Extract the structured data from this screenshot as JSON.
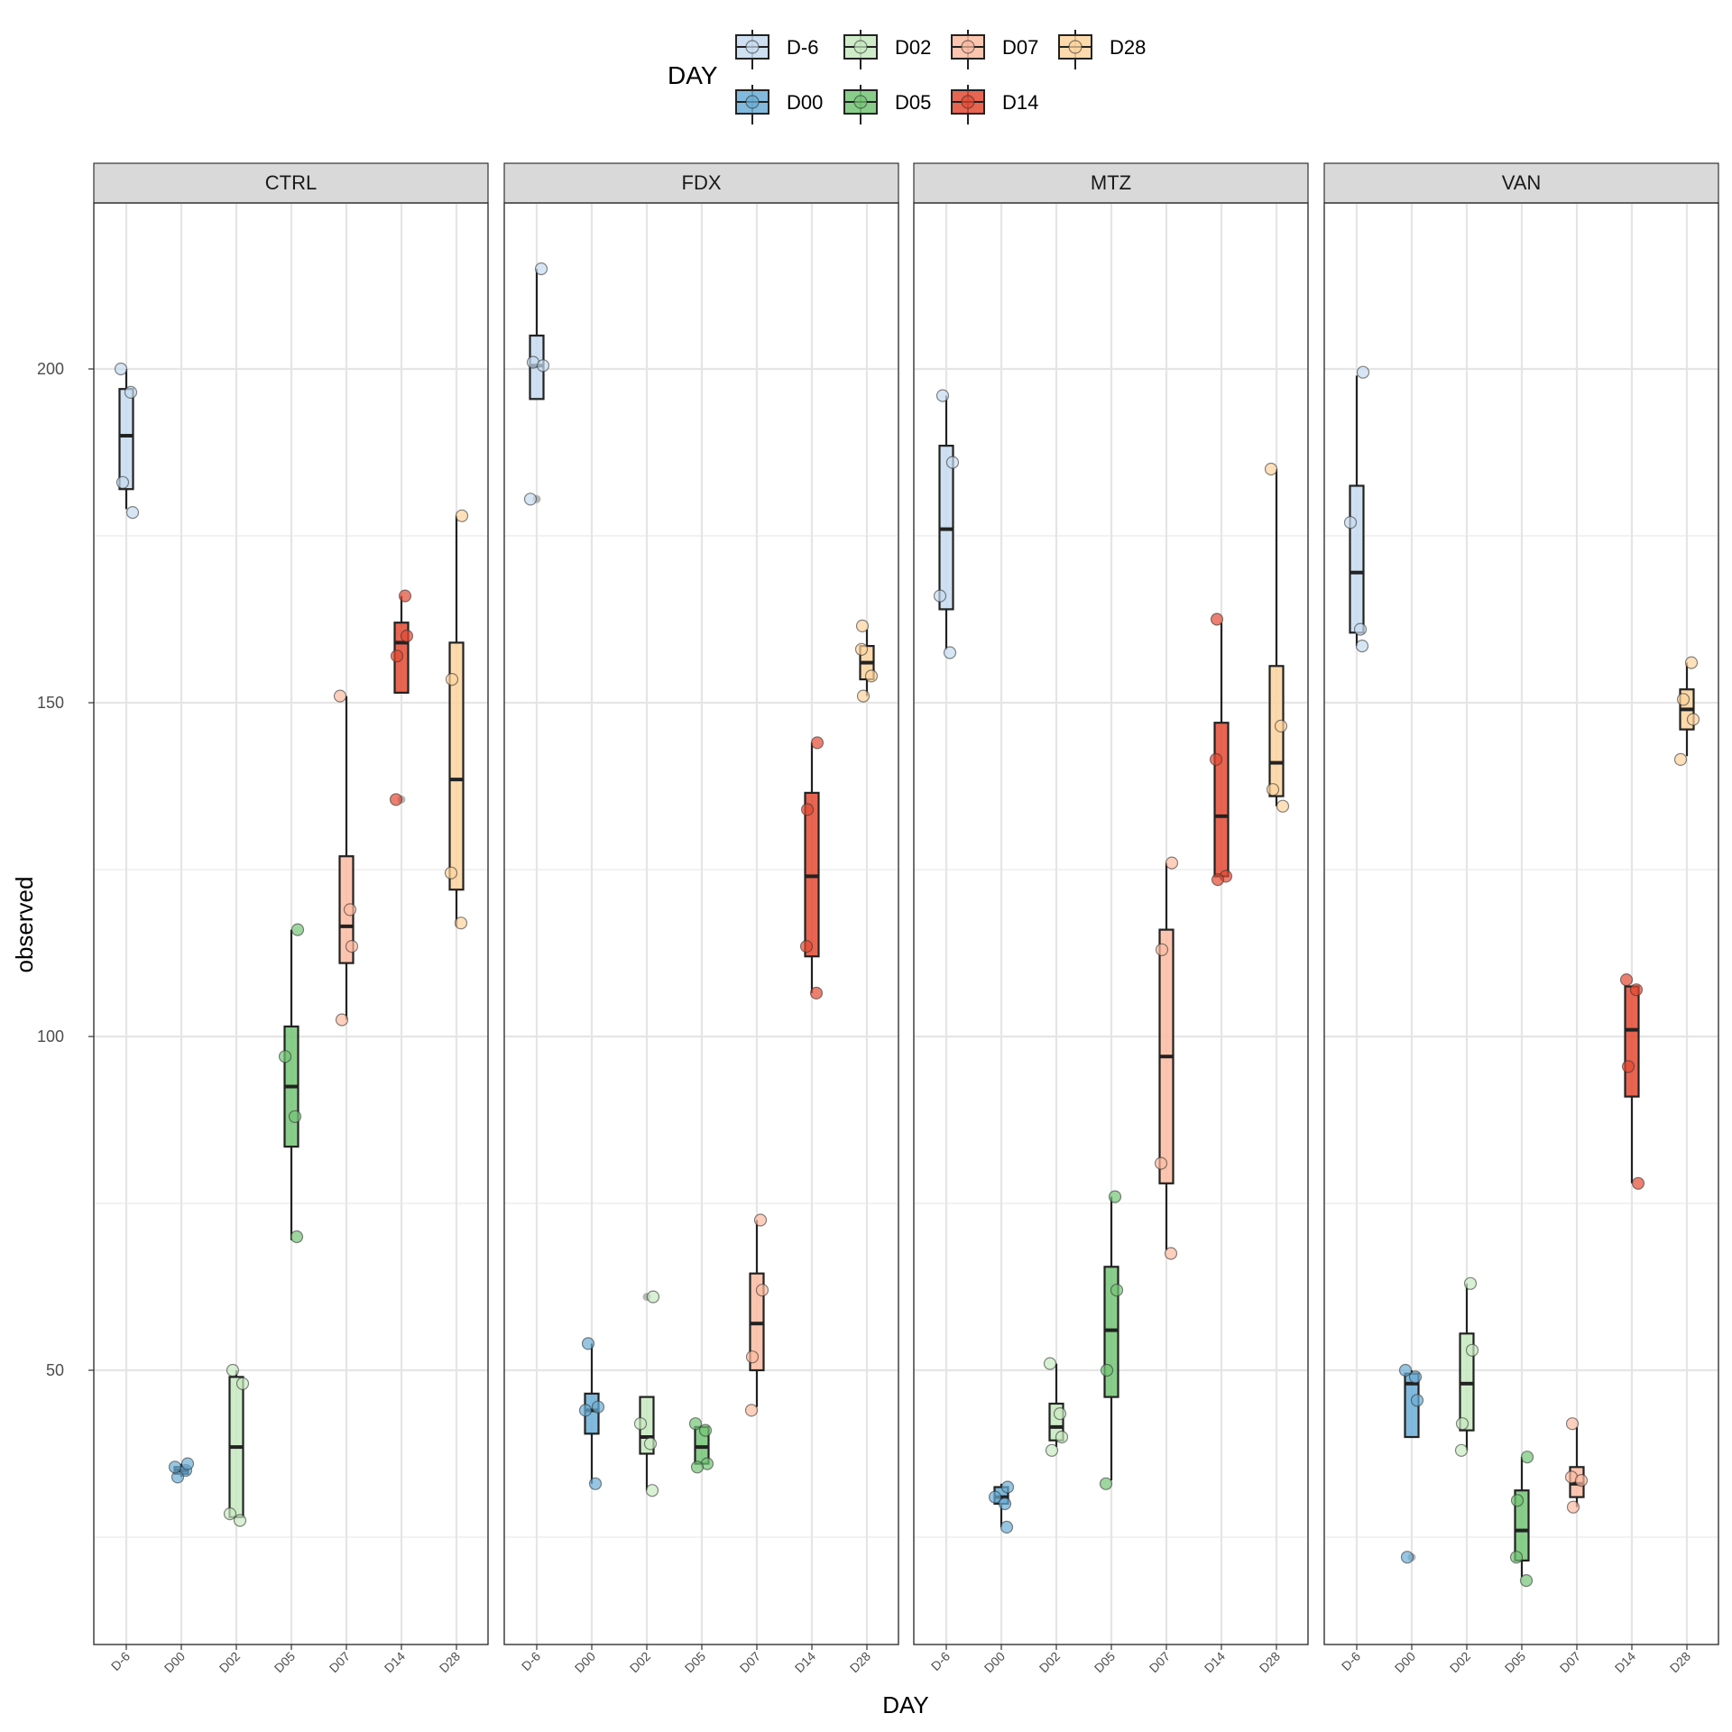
{
  "chart_data": {
    "type": "box",
    "xlabel": "DAY",
    "ylabel": "observed",
    "ylim": [
      8,
      224
    ],
    "yticks": [
      50,
      100,
      150,
      200
    ],
    "grid": true,
    "legend": {
      "title": "DAY",
      "position": "top",
      "entries": [
        "D-6",
        "D02",
        "D07",
        "D28",
        "D00",
        "D05",
        "D14"
      ]
    },
    "categories": [
      "D-6",
      "D00",
      "D02",
      "D05",
      "D07",
      "D14",
      "D28"
    ],
    "colors": {
      "D-6": "#c6dbef",
      "D00": "#6baed6",
      "D02": "#c7e9c0",
      "D05": "#74c476",
      "D07": "#fcbba1",
      "D14": "#e34a33",
      "D28": "#fdd49e"
    },
    "panels": [
      {
        "name": "CTRL",
        "boxes": [
          {
            "day": "D-6",
            "q1": 182,
            "median": 190,
            "q3": 197,
            "whisker_low": 179,
            "whisker_high": 200,
            "points": [
              200,
              196.5,
              183,
              178.5
            ]
          },
          {
            "day": "D00",
            "q1": 34.5,
            "median": 35,
            "q3": 35.5,
            "whisker_low": 34,
            "whisker_high": 36,
            "points": [
              35,
              34,
              36,
              35.5
            ]
          },
          {
            "day": "D02",
            "q1": 28,
            "median": 38.5,
            "q3": 49,
            "whisker_low": 28,
            "whisker_high": 50,
            "points": [
              50,
              48,
              28.5,
              27.5
            ]
          },
          {
            "day": "D05",
            "q1": 83.5,
            "median": 92.5,
            "q3": 101.5,
            "whisker_low": 69.5,
            "whisker_high": 116,
            "points": [
              116,
              97,
              88,
              70
            ]
          },
          {
            "day": "D07",
            "q1": 111,
            "median": 116.5,
            "q3": 127,
            "whisker_low": 102.5,
            "whisker_high": 151,
            "points": [
              151,
              119,
              113.5,
              102.5
            ]
          },
          {
            "day": "D14",
            "q1": 151.5,
            "median": 159,
            "q3": 162,
            "whisker_low": 151.5,
            "whisker_high": 166,
            "points": [
              166,
              160,
              157,
              135.5
            ],
            "outliers": [
              135.5
            ]
          },
          {
            "day": "D28",
            "q1": 122,
            "median": 138.5,
            "q3": 159,
            "whisker_low": 116.5,
            "whisker_high": 178,
            "points": [
              178,
              153.5,
              124.5,
              117
            ]
          }
        ]
      },
      {
        "name": "FDX",
        "boxes": [
          {
            "day": "D-6",
            "q1": 195.5,
            "median": 200.5,
            "q3": 205,
            "whisker_low": 195.5,
            "whisker_high": 215,
            "points": [
              215,
              201,
              200.5,
              180.5
            ],
            "outliers": [
              180.5
            ]
          },
          {
            "day": "D00",
            "q1": 40.5,
            "median": 44,
            "q3": 46.5,
            "whisker_low": 33,
            "whisker_high": 54,
            "points": [
              54,
              44.5,
              44,
              33
            ]
          },
          {
            "day": "D02",
            "q1": 37.5,
            "median": 40,
            "q3": 46,
            "whisker_low": 32,
            "whisker_high": 46,
            "points": [
              61,
              42,
              39,
              32
            ],
            "outliers": [
              61
            ]
          },
          {
            "day": "D05",
            "q1": 36,
            "median": 38.5,
            "q3": 41.5,
            "whisker_low": 36,
            "whisker_high": 41.5,
            "points": [
              42,
              41,
              36,
              35.5
            ]
          },
          {
            "day": "D07",
            "q1": 50,
            "median": 57,
            "q3": 64.5,
            "whisker_low": 44.5,
            "whisker_high": 72.5,
            "points": [
              72.5,
              62,
              52,
              44
            ]
          },
          {
            "day": "D14",
            "q1": 112,
            "median": 124,
            "q3": 136.5,
            "whisker_low": 106.5,
            "whisker_high": 144,
            "points": [
              144,
              134,
              113.5,
              106.5
            ]
          },
          {
            "day": "D28",
            "q1": 153.5,
            "median": 156,
            "q3": 158.5,
            "whisker_low": 151,
            "whisker_high": 161,
            "points": [
              161.5,
              158,
              154,
              151
            ]
          }
        ]
      },
      {
        "name": "MTZ",
        "boxes": [
          {
            "day": "D-6",
            "q1": 164,
            "median": 176,
            "q3": 188.5,
            "whisker_low": 158,
            "whisker_high": 196,
            "points": [
              196,
              186,
              166,
              157.5
            ]
          },
          {
            "day": "D00",
            "q1": 30,
            "median": 31,
            "q3": 32.5,
            "whisker_low": 26.5,
            "whisker_high": 33,
            "points": [
              32.5,
              31,
              30,
              26.5
            ]
          },
          {
            "day": "D02",
            "q1": 39.5,
            "median": 41.5,
            "q3": 45,
            "whisker_low": 38.5,
            "whisker_high": 51,
            "points": [
              51,
              43.5,
              40,
              38
            ]
          },
          {
            "day": "D05",
            "q1": 46,
            "median": 56,
            "q3": 65.5,
            "whisker_low": 33.5,
            "whisker_high": 76,
            "points": [
              76,
              62,
              50,
              33
            ]
          },
          {
            "day": "D07",
            "q1": 78,
            "median": 97,
            "q3": 116,
            "whisker_low": 68,
            "whisker_high": 126,
            "points": [
              126,
              113,
              81,
              67.5
            ]
          },
          {
            "day": "D14",
            "q1": 124,
            "median": 133,
            "q3": 147,
            "whisker_low": 123.5,
            "whisker_high": 162,
            "points": [
              162.5,
              141.5,
              124,
              123.5
            ]
          },
          {
            "day": "D28",
            "q1": 136,
            "median": 141,
            "q3": 155.5,
            "whisker_low": 134.5,
            "whisker_high": 185,
            "points": [
              185,
              146.5,
              137,
              134.5
            ]
          }
        ]
      },
      {
        "name": "VAN",
        "boxes": [
          {
            "day": "D-6",
            "q1": 160.5,
            "median": 169.5,
            "q3": 182.5,
            "whisker_low": 158.5,
            "whisker_high": 199,
            "points": [
              199.5,
              177,
              161,
              158.5
            ]
          },
          {
            "day": "D00",
            "q1": 40,
            "median": 48,
            "q3": 49.5,
            "whisker_low": 40,
            "whisker_high": 50,
            "points": [
              50,
              49,
              45.5,
              22
            ],
            "outliers": [
              22
            ]
          },
          {
            "day": "D02",
            "q1": 41,
            "median": 48,
            "q3": 55.5,
            "whisker_low": 38,
            "whisker_high": 63,
            "points": [
              63,
              53,
              42,
              38
            ]
          },
          {
            "day": "D05",
            "q1": 21.5,
            "median": 26,
            "q3": 32,
            "whisker_low": 19,
            "whisker_high": 37,
            "points": [
              37,
              30.5,
              22,
              18.5
            ]
          },
          {
            "day": "D07",
            "q1": 31,
            "median": 33,
            "q3": 35.5,
            "whisker_low": 29.5,
            "whisker_high": 41.5,
            "points": [
              42,
              34,
              33.5,
              29.5
            ]
          },
          {
            "day": "D14",
            "q1": 91,
            "median": 101,
            "q3": 107.5,
            "whisker_low": 78,
            "whisker_high": 107.5,
            "points": [
              108.5,
              107,
              95.5,
              78
            ]
          },
          {
            "day": "D28",
            "q1": 146,
            "median": 149,
            "q3": 152,
            "whisker_low": 142,
            "whisker_high": 156,
            "points": [
              156,
              150.5,
              147.5,
              141.5
            ]
          }
        ]
      }
    ]
  }
}
